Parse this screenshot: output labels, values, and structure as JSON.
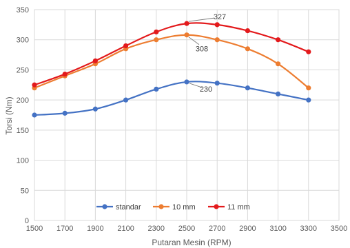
{
  "chart_data": {
    "type": "line",
    "title": "",
    "xlabel": "Putaran Mesin (RPM)",
    "ylabel": "Torsi (Nm)",
    "xlim": [
      1500,
      3500
    ],
    "ylim": [
      0,
      350
    ],
    "x_ticks": [
      1500,
      1700,
      1900,
      2100,
      2300,
      2500,
      2700,
      2900,
      3100,
      3300,
      3500
    ],
    "y_ticks": [
      0,
      50,
      100,
      150,
      200,
      250,
      300,
      350
    ],
    "grid": true,
    "legend_position": "bottom-inside",
    "smooth": true,
    "series": [
      {
        "name": "standar",
        "color": "#4472C4",
        "points": [
          [
            1500,
            175
          ],
          [
            1700,
            178
          ],
          [
            1900,
            185
          ],
          [
            2100,
            200
          ],
          [
            2300,
            218
          ],
          [
            2500,
            230
          ],
          [
            2700,
            228
          ],
          [
            2900,
            220
          ],
          [
            3100,
            210
          ],
          [
            3300,
            200
          ]
        ]
      },
      {
        "name": "10 mm",
        "color": "#ED7D31",
        "points": [
          [
            1500,
            220
          ],
          [
            1700,
            240
          ],
          [
            1900,
            260
          ],
          [
            2100,
            285
          ],
          [
            2300,
            300
          ],
          [
            2500,
            308
          ],
          [
            2700,
            300
          ],
          [
            2900,
            285
          ],
          [
            3100,
            260
          ],
          [
            3300,
            220
          ]
        ]
      },
      {
        "name": "11 mm",
        "color": "#E31A1C",
        "points": [
          [
            1500,
            225
          ],
          [
            1700,
            243
          ],
          [
            1900,
            265
          ],
          [
            2100,
            290
          ],
          [
            2300,
            313
          ],
          [
            2500,
            327
          ],
          [
            2700,
            325
          ],
          [
            2900,
            315
          ],
          [
            3100,
            300
          ],
          [
            3300,
            280
          ]
        ]
      }
    ],
    "annotations": [
      {
        "text": "327",
        "x": 2500,
        "y": 327
      },
      {
        "text": "308",
        "x": 2500,
        "y": 308
      },
      {
        "text": "230",
        "x": 2500,
        "y": 230
      }
    ]
  }
}
